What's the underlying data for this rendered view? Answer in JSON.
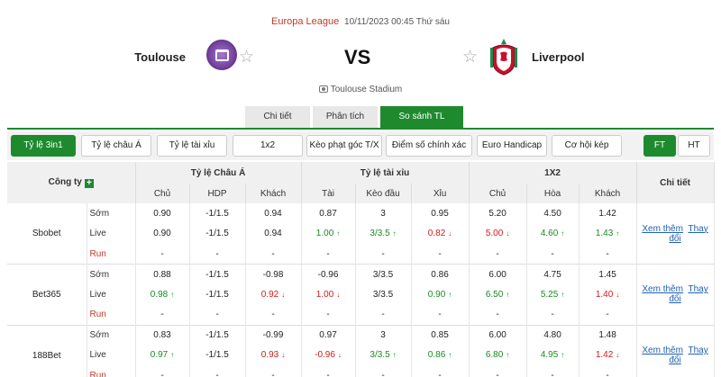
{
  "match": {
    "league": "Europa League",
    "datetime": "10/11/2023 00:45 Thứ sáu",
    "home_team": "Toulouse",
    "away_team": "Liverpool",
    "vs": "VS",
    "stadium": "Toulouse Stadium"
  },
  "tabs": [
    {
      "label": "Chi tiết"
    },
    {
      "label": "Phân tích"
    },
    {
      "label": "So sánh TL"
    }
  ],
  "filters": [
    {
      "label": "Tỷ lệ 3in1"
    },
    {
      "label": "Tỷ lệ châu Á"
    },
    {
      "label": "Tỷ lệ tài xỉu"
    },
    {
      "label": "1x2"
    },
    {
      "label": "Kèo phạt góc T/X"
    },
    {
      "label": "Điểm số chính xác"
    },
    {
      "label": "Euro Handicap"
    },
    {
      "label": "Cơ hội kép"
    }
  ],
  "time_toggle": [
    {
      "label": "FT"
    },
    {
      "label": "HT"
    }
  ],
  "table": {
    "company_header": "Công ty",
    "group_headers": [
      "Tỷ lệ Châu Á",
      "Tỷ lệ tài xỉu",
      "1X2",
      "Chi tiết"
    ],
    "sub_headers": [
      "Chủ",
      "HDP",
      "Khách",
      "Tài",
      "Kèo đầu",
      "Xỉu",
      "Chủ",
      "Hòa",
      "Khách"
    ],
    "detail_more": "Xem thêm",
    "detail_changes": "Thay đổi",
    "companies": [
      {
        "name": "Sbobet",
        "rows": [
          {
            "label": "Sớm",
            "cells": [
              "0.90",
              "-1/1.5",
              "0.94",
              "0.87",
              "3",
              "0.95",
              "5.20",
              "4.50",
              "1.42"
            ],
            "trend": [
              "",
              "",
              "",
              "",
              "",
              "",
              "",
              "",
              ""
            ]
          },
          {
            "label": "Live",
            "cells": [
              "0.90",
              "-1/1.5",
              "0.94",
              "1.00",
              "3/3.5",
              "0.82",
              "5.00",
              "4.60",
              "1.43"
            ],
            "trend": [
              "",
              "",
              "",
              "up",
              "up",
              "down",
              "down",
              "up",
              "up"
            ]
          },
          {
            "label": "Run",
            "cells": [
              "-",
              "-",
              "-",
              "-",
              "-",
              "-",
              "-",
              "-",
              "-"
            ],
            "trend": [
              "",
              "",
              "",
              "",
              "",
              "",
              "",
              "",
              ""
            ]
          }
        ]
      },
      {
        "name": "Bet365",
        "rows": [
          {
            "label": "Sớm",
            "cells": [
              "0.88",
              "-1/1.5",
              "-0.98",
              "-0.96",
              "3/3.5",
              "0.86",
              "6.00",
              "4.75",
              "1.45"
            ],
            "trend": [
              "",
              "",
              "",
              "",
              "",
              "",
              "",
              "",
              ""
            ]
          },
          {
            "label": "Live",
            "cells": [
              "0.98",
              "-1/1.5",
              "0.92",
              "1.00",
              "3/3.5",
              "0.90",
              "6.50",
              "5.25",
              "1.40"
            ],
            "trend": [
              "up",
              "",
              "down",
              "down",
              "",
              "up",
              "up",
              "up",
              "down"
            ]
          },
          {
            "label": "Run",
            "cells": [
              "-",
              "-",
              "-",
              "-",
              "-",
              "-",
              "-",
              "-",
              "-"
            ],
            "trend": [
              "",
              "",
              "",
              "",
              "",
              "",
              "",
              "",
              ""
            ]
          }
        ]
      },
      {
        "name": "188Bet",
        "rows": [
          {
            "label": "Sớm",
            "cells": [
              "0.83",
              "-1/1.5",
              "-0.99",
              "0.97",
              "3",
              "0.85",
              "6.00",
              "4.80",
              "1.48"
            ],
            "trend": [
              "",
              "",
              "",
              "",
              "",
              "",
              "",
              "",
              ""
            ]
          },
          {
            "label": "Live",
            "cells": [
              "0.97",
              "-1/1.5",
              "0.93",
              "-0.96",
              "3/3.5",
              "0.86",
              "6.80",
              "4.95",
              "1.42"
            ],
            "trend": [
              "up",
              "",
              "down",
              "down",
              "up",
              "up",
              "up",
              "up",
              "down"
            ]
          },
          {
            "label": "Run",
            "cells": [
              "-",
              "-",
              "-",
              "-",
              "-",
              "-",
              "-",
              "-",
              "-"
            ],
            "trend": [
              "",
              "",
              "",
              "",
              "",
              "",
              "",
              "",
              ""
            ]
          }
        ]
      }
    ]
  },
  "colors": {
    "accent_green": "#1e8a2e",
    "league_red": "#c0392b",
    "up": "#1a8a22",
    "down": "#d21919",
    "link": "#1f5fb3"
  },
  "icons": {
    "home_logo": "toulouse-crest",
    "away_logo": "liverpool-crest",
    "favorite": "star-icon",
    "stadium": "stadium-icon",
    "add": "plus-icon",
    "up": "arrow-up-icon",
    "down": "arrow-down-icon"
  }
}
